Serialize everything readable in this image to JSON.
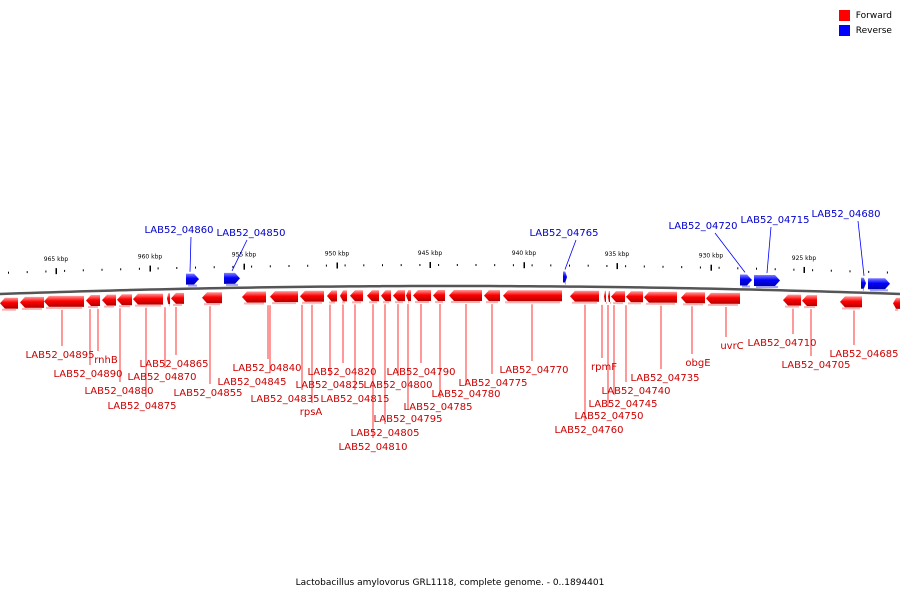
{
  "legend": {
    "forward_label": "Forward",
    "reverse_label": "Reverse",
    "forward_color": "#ff0000",
    "reverse_color": "#0000ff"
  },
  "caption": "Lactobacillus amylovorus GRL1118, complete genome. - 0..1894401",
  "scale": {
    "unit": "kbp",
    "major_ticks": [
      "965 kbp",
      "960 kbp",
      "955 kbp",
      "950 kbp",
      "945 kbp",
      "940 kbp",
      "935 kbp",
      "930 kbp",
      "925 kbp"
    ]
  },
  "genes_forward": [
    "LAB52_04895",
    "rnhB",
    "LAB52_04890",
    "LAB52_04880",
    "LAB52_04875",
    "LAB52_04870",
    "LAB52_04865",
    "LAB52_04855",
    "LAB52_04845",
    "LAB52_04840",
    "LAB52_04835",
    "LAB52_04825",
    "rpsA",
    "LAB52_04820",
    "LAB52_04815",
    "LAB52_04810",
    "LAB52_04805",
    "LAB52_04800",
    "LAB52_04795",
    "LAB52_04790",
    "LAB52_04785",
    "LAB52_04780",
    "LAB52_04775",
    "LAB52_04770",
    "LAB52_04760",
    "LAB52_04750",
    "rpmF",
    "LAB52_04745",
    "LAB52_04740",
    "LAB52_04735",
    "obgE",
    "uvrC",
    "LAB52_04710",
    "LAB52_04705",
    "LAB52_04685"
  ],
  "genes_reverse": [
    "LAB52_04860",
    "LAB52_04850",
    "LAB52_04765",
    "LAB52_04720",
    "LAB52_04715",
    "LAB52_04680"
  ]
}
